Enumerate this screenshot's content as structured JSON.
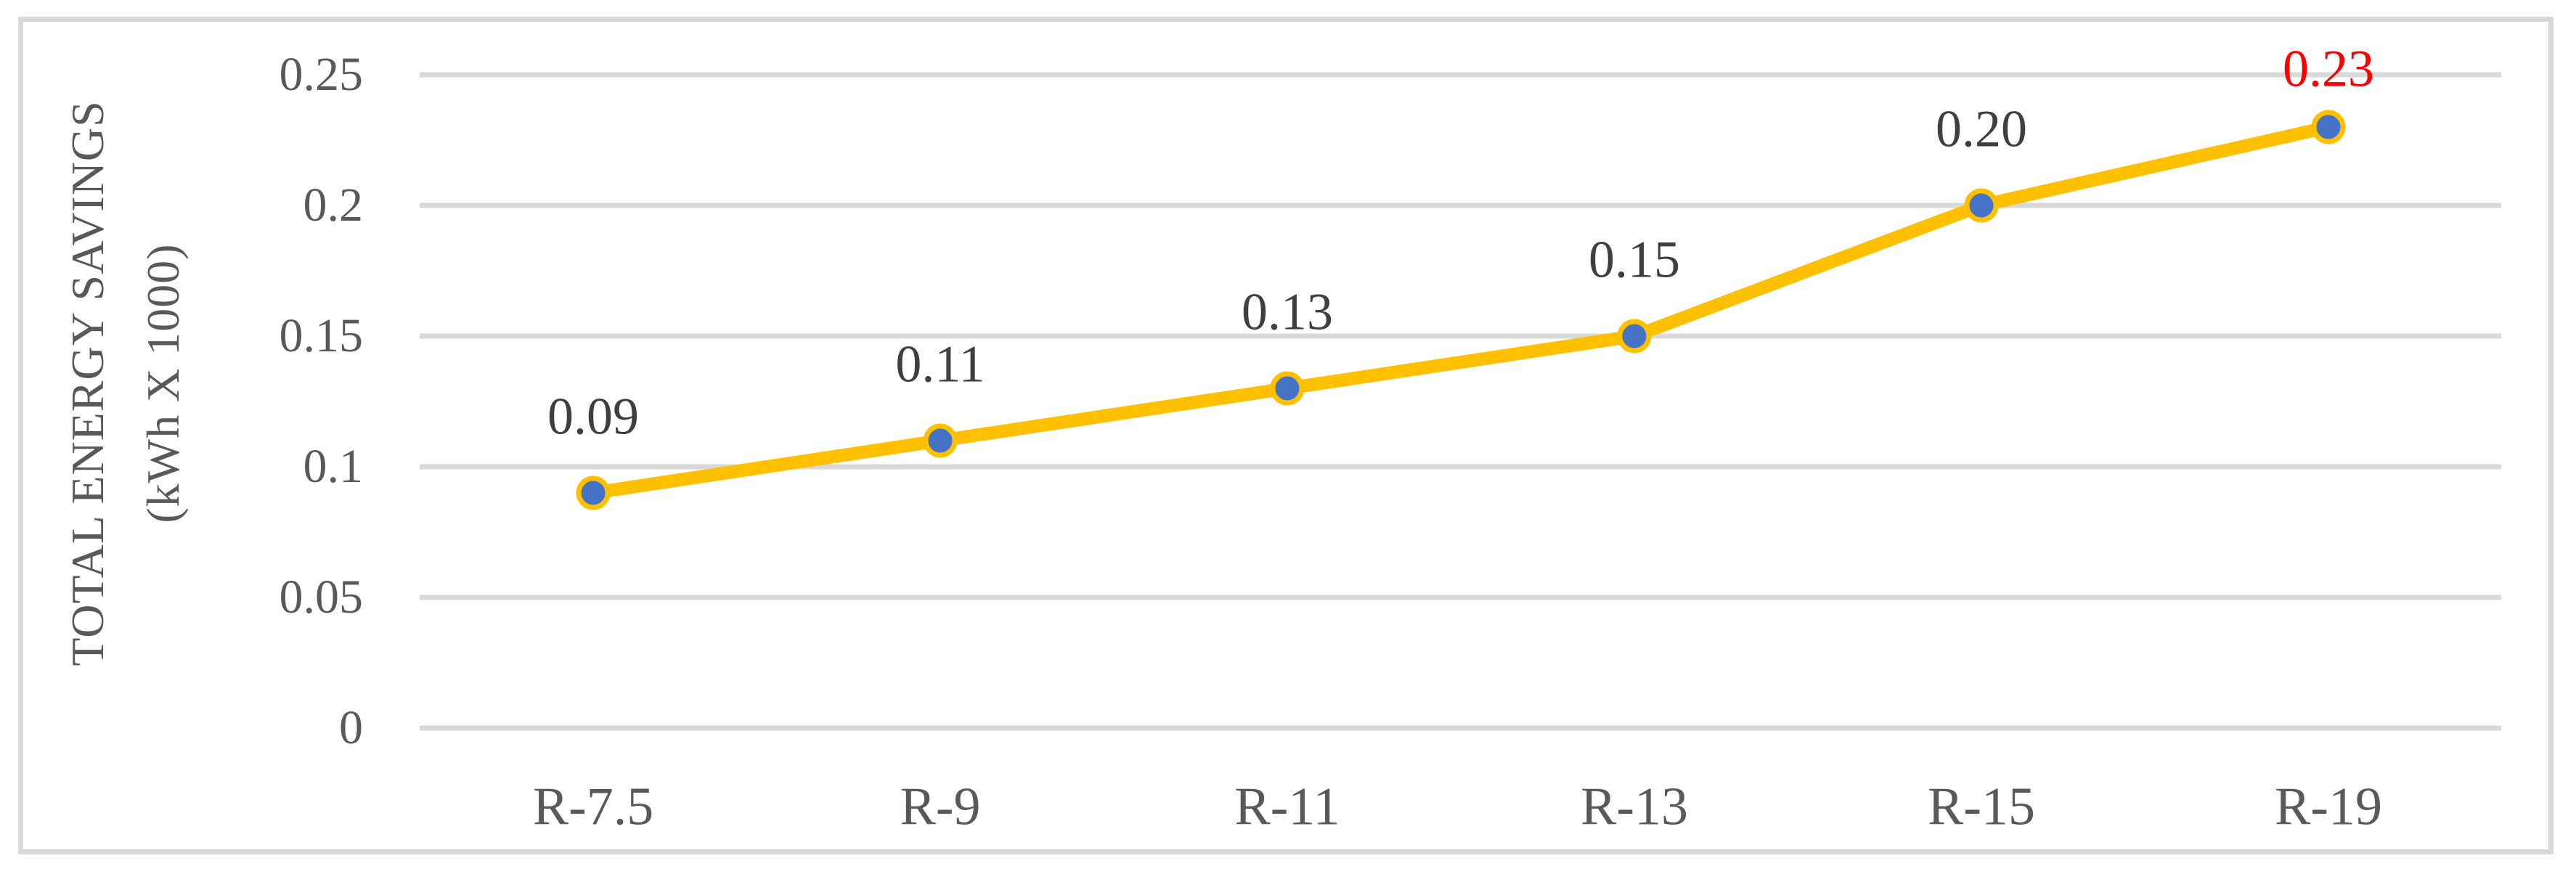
{
  "figure": {
    "y_axis_title_line1": "TOTAL ENERGY SAVINGS",
    "y_axis_title_line2": "(kWh X 1000)"
  },
  "chart_data": {
    "type": "line",
    "title": "",
    "xlabel": "",
    "ylabel": "TOTAL ENERGY SAVINGS (kWh X 1000)",
    "categories": [
      "R-7.5",
      "R-9",
      "R-11",
      "R-13",
      "R-15",
      "R-19"
    ],
    "series": [
      {
        "name": "Total energy savings",
        "values": [
          0.09,
          0.11,
          0.13,
          0.15,
          0.2,
          0.23
        ]
      }
    ],
    "data_labels": [
      {
        "text": "0.09",
        "color": "#3F3F3F"
      },
      {
        "text": "0.11",
        "color": "#3F3F3F"
      },
      {
        "text": "0.13",
        "color": "#3F3F3F"
      },
      {
        "text": "0.15",
        "color": "#3F3F3F"
      },
      {
        "text": "0.20",
        "color": "#3F3F3F"
      },
      {
        "text": "0.23",
        "color": "#FF0000"
      }
    ],
    "ylim": [
      0,
      0.25
    ],
    "yticks": [
      {
        "value": 0,
        "label": "0"
      },
      {
        "value": 0.05,
        "label": "0.05"
      },
      {
        "value": 0.1,
        "label": "0.1"
      },
      {
        "value": 0.15,
        "label": "0.15"
      },
      {
        "value": 0.2,
        "label": "0.2"
      },
      {
        "value": 0.25,
        "label": "0.25"
      }
    ],
    "grid": true,
    "legend": false,
    "colors": {
      "line": "#FFC000",
      "marker_fill": "#4472C4",
      "marker_ring": "#FFC000",
      "gridline": "#D9D9D9",
      "border": "#D9D9D9",
      "axis_text": "#595959",
      "highlight_label": "#FF0000"
    }
  }
}
